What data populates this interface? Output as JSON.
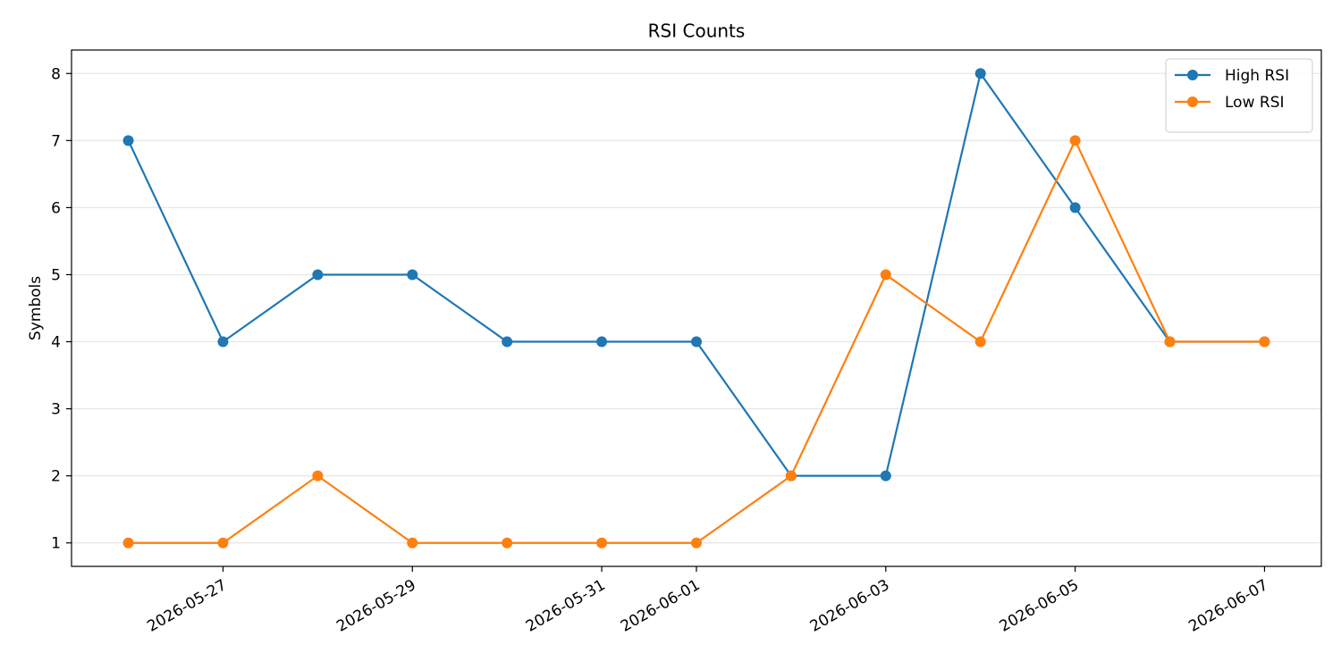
{
  "chart_data": {
    "type": "line",
    "title": "RSI Counts",
    "y_label": "Symbols",
    "x": [
      "2026-05-26",
      "2026-05-27",
      "2026-05-28",
      "2026-05-29",
      "2026-05-30",
      "2026-05-31",
      "2026-06-01",
      "2026-06-02",
      "2026-06-03",
      "2026-06-04",
      "2026-06-05",
      "2026-06-06",
      "2026-06-07"
    ],
    "series": [
      {
        "name": "High RSI",
        "color": "#1f77b4",
        "values": [
          7,
          4,
          5,
          5,
          4,
          4,
          4,
          2,
          2,
          8,
          6,
          4,
          4
        ]
      },
      {
        "name": "Low RSI",
        "color": "#ff7f0e",
        "values": [
          1,
          1,
          2,
          1,
          1,
          1,
          1,
          2,
          5,
          4,
          7,
          4,
          4
        ]
      }
    ],
    "xlim": [
      "2026-05-25T09:36:00Z",
      "2026-06-07T14:24:00Z"
    ],
    "xticks": [
      "2026-05-27",
      "2026-05-29",
      "2026-05-31",
      "2026-06-01",
      "2026-06-03",
      "2026-06-05",
      "2026-06-07"
    ],
    "ylim": [
      0.65,
      8.35
    ],
    "yticks": [
      1,
      2,
      3,
      4,
      5,
      6,
      7,
      8
    ],
    "grid": "y",
    "legend": "upper right"
  }
}
